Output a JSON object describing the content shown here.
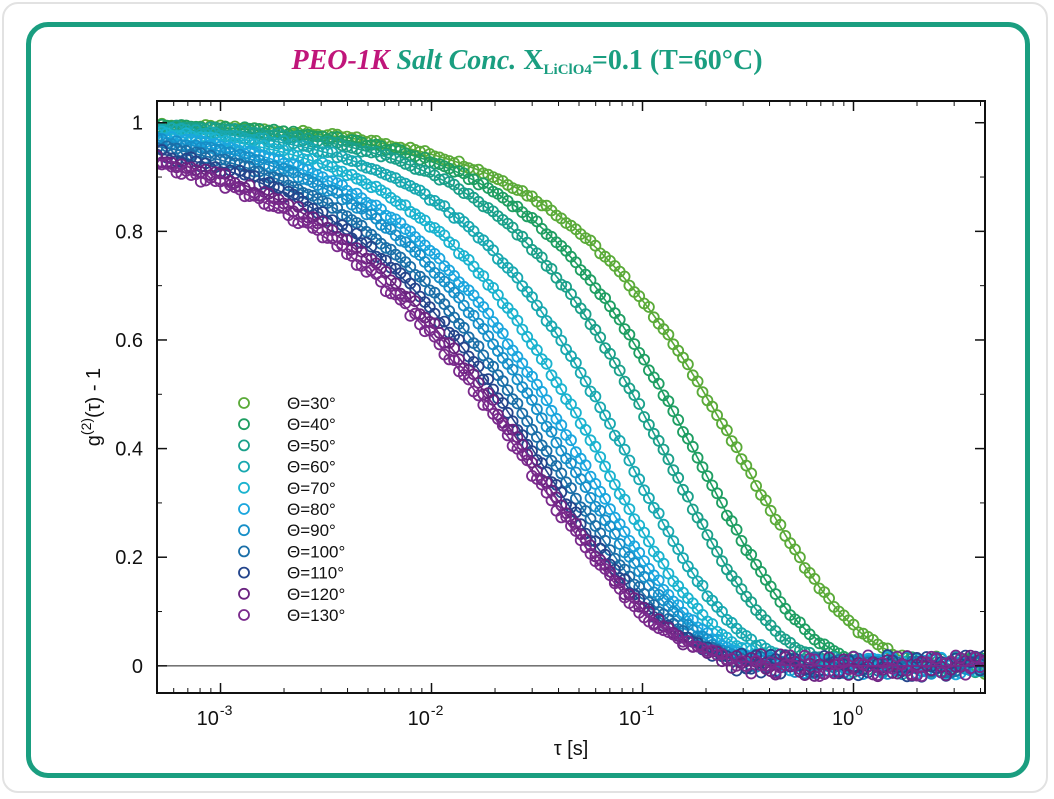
{
  "title": {
    "sample": "PEO-1K",
    "salt_label": "Salt Conc.",
    "x_main": "X",
    "x_sub": "LiClO4",
    "value_text": "=0.1 (T=60°C)",
    "colors": {
      "sample": "#c0157a",
      "rest": "#1a9e80"
    }
  },
  "chart_data": {
    "type": "scatter",
    "xscale": "log",
    "xlabel": "τ [s]",
    "ylabel": "g(2)(τ) - 1",
    "ylabel_parts": {
      "main": "g",
      "sup": "(2)",
      "rest": "(τ) - 1"
    },
    "xlim": [
      0.0005,
      4.2
    ],
    "ylim": [
      -0.05,
      1.04
    ],
    "x_ticks": [
      {
        "value": 0.001,
        "base": "10",
        "exp": "-3"
      },
      {
        "value": 0.01,
        "base": "10",
        "exp": "-2"
      },
      {
        "value": 0.1,
        "base": "10",
        "exp": "-1"
      },
      {
        "value": 1,
        "base": "10",
        "exp": "0"
      }
    ],
    "y_ticks": [
      {
        "value": 0,
        "label": "0"
      },
      {
        "value": 0.2,
        "label": "0.2"
      },
      {
        "value": 0.4,
        "label": "0.4"
      },
      {
        "value": 0.6,
        "label": "0.6"
      },
      {
        "value": 0.8,
        "label": "0.8"
      },
      {
        "value": 1,
        "label": "1"
      }
    ],
    "zero_line": true,
    "grid": false,
    "legend_position": "left-middle",
    "series": [
      {
        "name": "Θ=30°",
        "color": "#5aaa38",
        "tau": 0.72,
        "beta": 0.82,
        "plateau_dip": 0.0
      },
      {
        "name": "Θ=40°",
        "color": "#1e9e62",
        "tau": 0.42,
        "beta": 0.88,
        "plateau_dip": 0.0
      },
      {
        "name": "Θ=50°",
        "color": "#1aa08a",
        "tau": 0.3,
        "beta": 0.88,
        "plateau_dip": 0.0
      },
      {
        "name": "Θ=60°",
        "color": "#18a8b0",
        "tau": 0.2,
        "beta": 0.86,
        "plateau_dip": 0.0
      },
      {
        "name": "Θ=70°",
        "color": "#1ab3cf",
        "tau": 0.155,
        "beta": 0.82,
        "plateau_dip": 0.0
      },
      {
        "name": "Θ=80°",
        "color": "#1aa6de",
        "tau": 0.13,
        "beta": 0.78,
        "plateau_dip": 0.0
      },
      {
        "name": "Θ=90°",
        "color": "#168fc8",
        "tau": 0.115,
        "beta": 0.76,
        "plateau_dip": 0.0
      },
      {
        "name": "Θ=100°",
        "color": "#1a6fa8",
        "tau": 0.1,
        "beta": 0.74,
        "plateau_dip": 0.005
      },
      {
        "name": "Θ=110°",
        "color": "#24458c",
        "tau": 0.09,
        "beta": 0.72,
        "plateau_dip": 0.01
      },
      {
        "name": "Θ=120°",
        "color": "#6a2380",
        "tau": 0.085,
        "beta": 0.7,
        "plateau_dip": 0.015
      },
      {
        "name": "Θ=130°",
        "color": "#7a2a8c",
        "tau": 0.082,
        "beta": 0.68,
        "plateau_dip": 0.02
      }
    ]
  }
}
